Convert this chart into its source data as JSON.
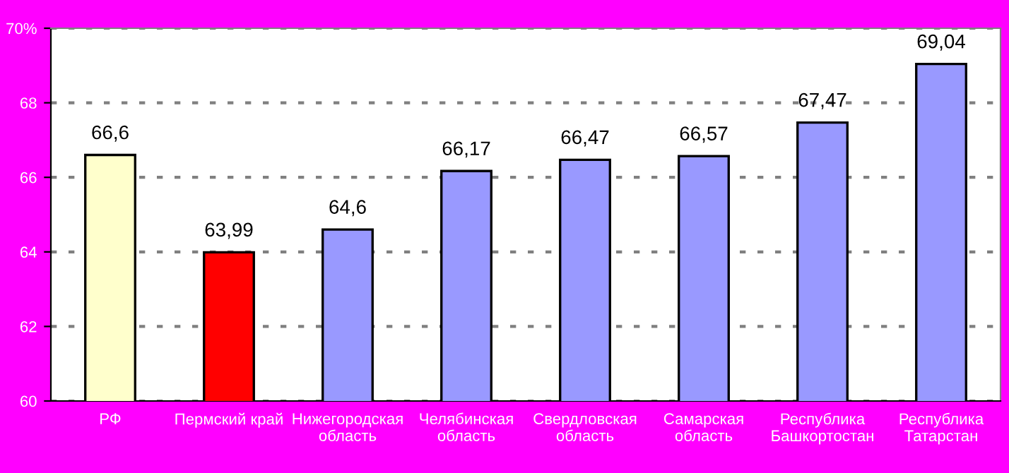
{
  "chart_data": {
    "type": "bar",
    "categories": [
      "РФ",
      "Пермский край",
      "Нижегородская\nобласть",
      "Челябинская\nобласть",
      "Свердловская\nобласть",
      "Самарская\nобласть",
      "Республика\nБашкортостан",
      "Республика\nТатарстан"
    ],
    "values": [
      66.6,
      63.99,
      64.6,
      66.17,
      66.47,
      66.57,
      67.47,
      69.04
    ],
    "value_labels": [
      "66,6",
      "63,99",
      "64,6",
      "66,17",
      "66,47",
      "66,57",
      "67,47",
      "69,04"
    ],
    "colors": [
      "#ffffcc",
      "#ff0000",
      "#9999ff",
      "#9999ff",
      "#9999ff",
      "#9999ff",
      "#9999ff",
      "#9999ff"
    ],
    "ylim": [
      60,
      70
    ],
    "yticks": [
      60,
      62,
      64,
      66,
      68,
      {
        "value": 70,
        "label": "70%"
      }
    ],
    "grid": "y"
  }
}
